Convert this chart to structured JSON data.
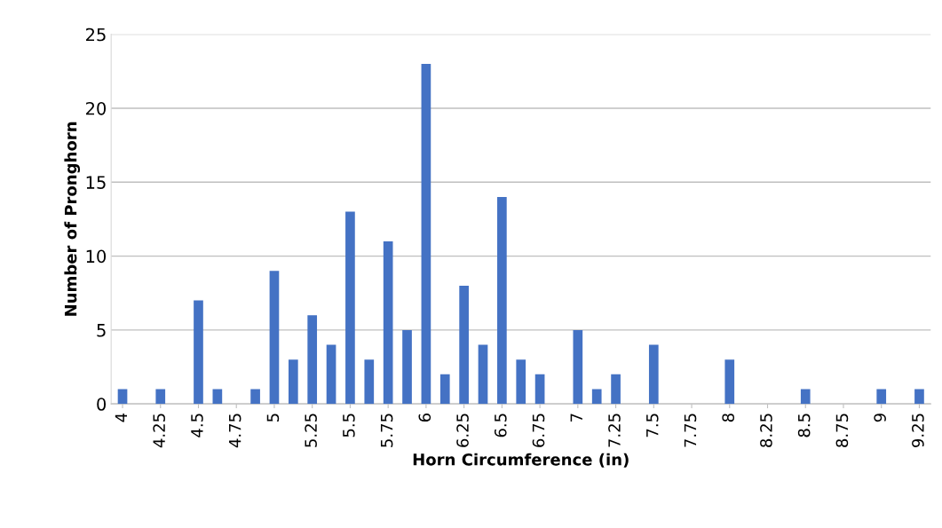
{
  "chart_data": {
    "type": "bar",
    "xlabel": "Horn Circumference (in)",
    "ylabel": "Number of Pronghorn",
    "categories": [
      "4",
      null,
      "4.25",
      null,
      "4.5",
      null,
      "4.75",
      null,
      "5",
      null,
      "5.25",
      null,
      "5.5",
      null,
      "5.75",
      null,
      "6",
      null,
      "6.25",
      null,
      "6.5",
      null,
      "6.75",
      null,
      "7",
      null,
      "7.25",
      null,
      "7.5",
      null,
      "7.75",
      null,
      "8",
      null,
      "8.25",
      null,
      "8.5",
      null,
      "8.75",
      null,
      "9",
      null,
      "9.25"
    ],
    "values": [
      1,
      0,
      1,
      0,
      7,
      1,
      0,
      1,
      9,
      3,
      6,
      4,
      13,
      3,
      11,
      5,
      23,
      2,
      8,
      4,
      14,
      3,
      2,
      0,
      5,
      1,
      2,
      0,
      4,
      0,
      0,
      0,
      3,
      0,
      0,
      0,
      1,
      0,
      0,
      0,
      1,
      0,
      1
    ],
    "color": "#4472c4",
    "ylim": [
      0,
      25
    ],
    "yticks": [
      0,
      5,
      10,
      15,
      20,
      25
    ],
    "grid": "y"
  }
}
